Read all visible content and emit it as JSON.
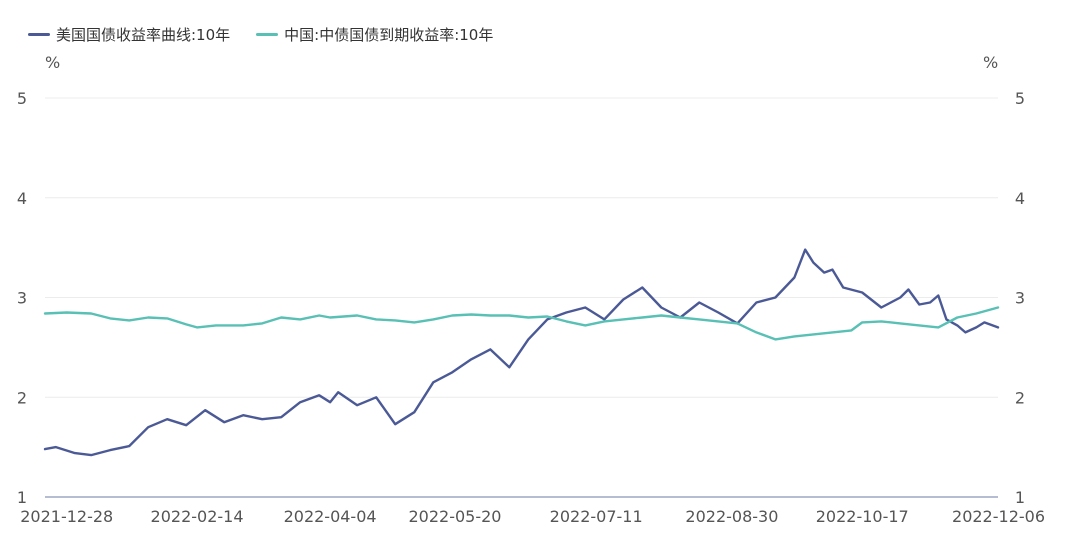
{
  "legend": [
    {
      "label": "美国国债收益率曲线:10年",
      "color": "#4b5a96"
    },
    {
      "label": "中国:中债国债到期收益率:10年",
      "color": "#58c0b4"
    }
  ],
  "chart_data": {
    "type": "line",
    "y_unit_left": "%",
    "y_unit_right": "%",
    "ylim": [
      1,
      5
    ],
    "yticks": [
      1,
      2,
      3,
      4,
      5
    ],
    "grid": true,
    "xlim": [
      "2021-12-20",
      "2022-12-06"
    ],
    "xticks": [
      "2021-12-28",
      "2022-02-14",
      "2022-04-04",
      "2022-05-20",
      "2022-07-11",
      "2022-08-30",
      "2022-10-17",
      "2022-12-06"
    ],
    "series": [
      {
        "name": "美国国债收益率曲线:10年",
        "color": "#4b5a96",
        "points": [
          [
            "2021-12-20",
            1.48
          ],
          [
            "2021-12-24",
            1.5
          ],
          [
            "2021-12-31",
            1.44
          ],
          [
            "2022-01-06",
            1.42
          ],
          [
            "2022-01-13",
            1.47
          ],
          [
            "2022-01-20",
            1.51
          ],
          [
            "2022-01-27",
            1.7
          ],
          [
            "2022-02-03",
            1.78
          ],
          [
            "2022-02-10",
            1.72
          ],
          [
            "2022-02-17",
            1.87
          ],
          [
            "2022-02-24",
            1.75
          ],
          [
            "2022-03-03",
            1.82
          ],
          [
            "2022-03-10",
            1.78
          ],
          [
            "2022-03-17",
            1.8
          ],
          [
            "2022-03-24",
            1.95
          ],
          [
            "2022-03-31",
            2.02
          ],
          [
            "2022-04-04",
            1.95
          ],
          [
            "2022-04-07",
            2.05
          ],
          [
            "2022-04-14",
            1.92
          ],
          [
            "2022-04-21",
            2.0
          ],
          [
            "2022-04-28",
            1.73
          ],
          [
            "2022-05-05",
            1.85
          ],
          [
            "2022-05-12",
            2.15
          ],
          [
            "2022-05-19",
            2.25
          ],
          [
            "2022-05-26",
            2.38
          ],
          [
            "2022-06-02",
            2.48
          ],
          [
            "2022-06-09",
            2.3
          ],
          [
            "2022-06-16",
            2.58
          ],
          [
            "2022-06-23",
            2.78
          ],
          [
            "2022-06-30",
            2.85
          ],
          [
            "2022-07-07",
            2.9
          ],
          [
            "2022-07-14",
            2.78
          ],
          [
            "2022-07-21",
            2.98
          ],
          [
            "2022-07-28",
            3.1
          ],
          [
            "2022-08-04",
            2.9
          ],
          [
            "2022-08-11",
            2.8
          ],
          [
            "2022-08-18",
            2.95
          ],
          [
            "2022-08-25",
            2.85
          ],
          [
            "2022-09-01",
            2.74
          ],
          [
            "2022-09-08",
            2.95
          ],
          [
            "2022-09-15",
            3.0
          ],
          [
            "2022-09-22",
            3.2
          ],
          [
            "2022-09-26",
            3.48
          ],
          [
            "2022-09-29",
            3.35
          ],
          [
            "2022-10-03",
            3.25
          ],
          [
            "2022-10-06",
            3.28
          ],
          [
            "2022-10-10",
            3.1
          ],
          [
            "2022-10-17",
            3.05
          ],
          [
            "2022-10-24",
            2.9
          ],
          [
            "2022-10-31",
            3.0
          ],
          [
            "2022-11-03",
            3.08
          ],
          [
            "2022-11-07",
            2.93
          ],
          [
            "2022-11-11",
            2.95
          ],
          [
            "2022-11-14",
            3.02
          ],
          [
            "2022-11-17",
            2.78
          ],
          [
            "2022-11-21",
            2.72
          ],
          [
            "2022-11-24",
            2.65
          ],
          [
            "2022-11-28",
            2.7
          ],
          [
            "2022-12-01",
            2.75
          ],
          [
            "2022-12-06",
            2.7
          ]
        ]
      },
      {
        "name": "中国:中债国债到期收益率:10年",
        "color": "#58c0b4",
        "points": [
          [
            "2021-12-20",
            2.84
          ],
          [
            "2021-12-28",
            2.85
          ],
          [
            "2022-01-06",
            2.84
          ],
          [
            "2022-01-13",
            2.79
          ],
          [
            "2022-01-20",
            2.77
          ],
          [
            "2022-01-27",
            2.8
          ],
          [
            "2022-02-03",
            2.79
          ],
          [
            "2022-02-10",
            2.73
          ],
          [
            "2022-02-14",
            2.7
          ],
          [
            "2022-02-21",
            2.72
          ],
          [
            "2022-03-03",
            2.72
          ],
          [
            "2022-03-10",
            2.74
          ],
          [
            "2022-03-17",
            2.8
          ],
          [
            "2022-03-24",
            2.78
          ],
          [
            "2022-03-31",
            2.82
          ],
          [
            "2022-04-04",
            2.8
          ],
          [
            "2022-04-14",
            2.82
          ],
          [
            "2022-04-21",
            2.78
          ],
          [
            "2022-04-28",
            2.77
          ],
          [
            "2022-05-05",
            2.75
          ],
          [
            "2022-05-12",
            2.78
          ],
          [
            "2022-05-19",
            2.82
          ],
          [
            "2022-05-26",
            2.83
          ],
          [
            "2022-06-02",
            2.82
          ],
          [
            "2022-06-09",
            2.82
          ],
          [
            "2022-06-16",
            2.8
          ],
          [
            "2022-06-23",
            2.81
          ],
          [
            "2022-06-30",
            2.76
          ],
          [
            "2022-07-07",
            2.72
          ],
          [
            "2022-07-14",
            2.76
          ],
          [
            "2022-07-21",
            2.78
          ],
          [
            "2022-07-28",
            2.8
          ],
          [
            "2022-08-04",
            2.82
          ],
          [
            "2022-08-11",
            2.8
          ],
          [
            "2022-08-18",
            2.78
          ],
          [
            "2022-08-25",
            2.76
          ],
          [
            "2022-09-01",
            2.74
          ],
          [
            "2022-09-08",
            2.65
          ],
          [
            "2022-09-15",
            2.58
          ],
          [
            "2022-09-22",
            2.61
          ],
          [
            "2022-09-29",
            2.63
          ],
          [
            "2022-10-06",
            2.65
          ],
          [
            "2022-10-13",
            2.67
          ],
          [
            "2022-10-17",
            2.75
          ],
          [
            "2022-10-24",
            2.76
          ],
          [
            "2022-10-31",
            2.74
          ],
          [
            "2022-11-07",
            2.72
          ],
          [
            "2022-11-14",
            2.7
          ],
          [
            "2022-11-21",
            2.8
          ],
          [
            "2022-11-28",
            2.84
          ],
          [
            "2022-12-06",
            2.9
          ]
        ]
      }
    ]
  }
}
